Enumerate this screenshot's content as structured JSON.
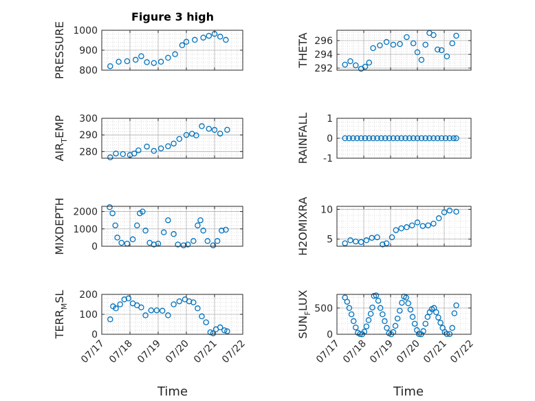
{
  "colors": {
    "marker": "#0072BD",
    "axis": "#262626",
    "grid": "#b0b0b0",
    "grid_minor": "#d4d4d4"
  },
  "figure": {
    "title": "Figure 3 high",
    "xlabel_left": "Time",
    "xlabel_right": "Time"
  },
  "chart_data": [
    {
      "type": "scatter",
      "name": "pressure",
      "ylabel": "PRESSURE",
      "ylim": [
        800,
        1000
      ],
      "yticks": [
        800,
        900,
        1000
      ],
      "ytick_labels": [
        "800",
        "900",
        "1000"
      ],
      "xlim": [
        0,
        5
      ],
      "xticks": [
        0,
        1,
        2,
        3,
        4,
        5
      ],
      "xtick_labels": [
        "07/17",
        "07/18",
        "07/19",
        "07/20",
        "07/21",
        "07/22"
      ],
      "show_xtick_labels": false,
      "grid": true,
      "minor_grid": true,
      "marker": "open-circle",
      "series": [
        {
          "x": [
            0.3,
            0.6,
            0.9,
            1.2,
            1.4,
            1.6,
            1.85,
            2.1,
            2.35,
            2.6,
            2.85,
            3.0,
            3.3,
            3.6,
            3.8,
            4.0,
            4.2,
            4.4
          ],
          "y": [
            820,
            842,
            845,
            852,
            870,
            840,
            836,
            842,
            862,
            880,
            925,
            942,
            952,
            963,
            972,
            982,
            968,
            952
          ]
        }
      ]
    },
    {
      "type": "scatter",
      "name": "theta",
      "ylabel": "THETA",
      "ylim": [
        291.7,
        297.5
      ],
      "yticks": [
        292,
        294,
        296
      ],
      "ytick_labels": [
        "292",
        "294",
        "296"
      ],
      "xlim": [
        0,
        5
      ],
      "xticks": [
        0,
        1,
        2,
        3,
        4,
        5
      ],
      "xtick_labels": [
        "07/17",
        "07/18",
        "07/19",
        "07/20",
        "07/21",
        "07/22"
      ],
      "show_xtick_labels": false,
      "grid": true,
      "minor_grid": true,
      "marker": "open-circle",
      "series": [
        {
          "x": [
            0.3,
            0.5,
            0.7,
            0.9,
            1.05,
            1.2,
            1.35,
            1.6,
            1.85,
            2.1,
            2.35,
            2.6,
            2.85,
            3.0,
            3.15,
            3.3,
            3.45,
            3.6,
            3.75,
            3.9,
            4.1,
            4.3,
            4.45
          ],
          "y": [
            292.5,
            293.0,
            292.4,
            291.9,
            292.2,
            292.8,
            294.9,
            295.3,
            295.8,
            295.4,
            295.5,
            296.5,
            295.6,
            294.3,
            293.2,
            295.4,
            297.1,
            296.8,
            294.7,
            294.6,
            293.7,
            295.6,
            296.7
          ]
        }
      ]
    },
    {
      "type": "scatter",
      "name": "air-temp",
      "ylabel": "AIR_TEMP",
      "ylabel_display": {
        "base": "AIR",
        "sub": "T",
        "rest": "EMP"
      },
      "ylim": [
        276,
        300
      ],
      "yticks": [
        280,
        290,
        300
      ],
      "ytick_labels": [
        "280",
        "290",
        "300"
      ],
      "xlim": [
        0,
        5
      ],
      "xticks": [
        0,
        1,
        2,
        3,
        4,
        5
      ],
      "xtick_labels": [
        "07/17",
        "07/18",
        "07/19",
        "07/20",
        "07/21",
        "07/22"
      ],
      "show_xtick_labels": false,
      "grid": true,
      "minor_grid": true,
      "marker": "open-circle",
      "series": [
        {
          "x": [
            0.3,
            0.5,
            0.75,
            1.0,
            1.15,
            1.3,
            1.6,
            1.85,
            2.1,
            2.35,
            2.55,
            2.75,
            3.0,
            3.2,
            3.35,
            3.55,
            3.8,
            4.0,
            4.2,
            4.45
          ],
          "y": [
            276.5,
            278.8,
            278.5,
            277.9,
            278.8,
            280.7,
            283.0,
            280.4,
            281.9,
            283.2,
            284.8,
            287.6,
            290.0,
            290.7,
            289.7,
            295.3,
            293.7,
            293.0,
            290.8,
            293.1
          ]
        }
      ]
    },
    {
      "type": "scatter",
      "name": "rainfall",
      "ylabel": "RAINFALL",
      "ylim": [
        -1,
        1
      ],
      "yticks": [
        -1,
        0,
        1
      ],
      "ytick_labels": [
        "-1",
        "0",
        "1"
      ],
      "xlim": [
        0,
        5
      ],
      "xticks": [
        0,
        1,
        2,
        3,
        4,
        5
      ],
      "xtick_labels": [
        "07/17",
        "07/18",
        "07/19",
        "07/20",
        "07/21",
        "07/22"
      ],
      "show_xtick_labels": false,
      "grid": true,
      "minor_grid": true,
      "marker": "open-circle",
      "series": [
        {
          "x": [
            0.3,
            0.45,
            0.6,
            0.75,
            0.9,
            1.05,
            1.2,
            1.35,
            1.5,
            1.65,
            1.8,
            1.95,
            2.1,
            2.25,
            2.4,
            2.55,
            2.7,
            2.85,
            3.0,
            3.15,
            3.3,
            3.45,
            3.6,
            3.75,
            3.9,
            4.05,
            4.2,
            4.35,
            4.45
          ],
          "y": [
            0,
            0,
            0,
            0,
            0,
            0,
            0,
            0,
            0,
            0,
            0,
            0,
            0,
            0,
            0,
            0,
            0,
            0,
            0,
            0,
            0,
            0,
            0,
            0,
            0,
            0,
            0,
            0,
            0
          ]
        }
      ]
    },
    {
      "type": "scatter",
      "name": "mixdepth",
      "ylabel": "MIXDEPTH",
      "ylim": [
        0,
        2300
      ],
      "yticks": [
        0,
        1000,
        2000
      ],
      "ytick_labels": [
        "0",
        "1000",
        "2000"
      ],
      "xlim": [
        0,
        5
      ],
      "xticks": [
        0,
        1,
        2,
        3,
        4,
        5
      ],
      "xtick_labels": [
        "07/17",
        "07/18",
        "07/19",
        "07/20",
        "07/21",
        "07/22"
      ],
      "show_xtick_labels": false,
      "grid": true,
      "minor_grid": true,
      "marker": "open-circle",
      "series": [
        {
          "x": [
            0.28,
            0.38,
            0.48,
            0.55,
            0.7,
            0.9,
            1.1,
            1.25,
            1.35,
            1.45,
            1.55,
            1.7,
            1.85,
            2.0,
            2.2,
            2.35,
            2.55,
            2.7,
            2.9,
            3.05,
            3.25,
            3.4,
            3.5,
            3.6,
            3.75,
            3.95,
            4.1,
            4.25,
            4.4
          ],
          "y": [
            2250,
            1900,
            1200,
            500,
            200,
            150,
            400,
            1200,
            1900,
            2000,
            900,
            200,
            100,
            150,
            800,
            1500,
            700,
            100,
            50,
            100,
            300,
            1200,
            1500,
            900,
            300,
            50,
            300,
            900,
            950
          ]
        }
      ]
    },
    {
      "type": "scatter",
      "name": "h2omixra",
      "ylabel": "H2OMIXRA",
      "ylim": [
        3.8,
        10.5
      ],
      "yticks": [
        5,
        10
      ],
      "ytick_labels": [
        "5",
        "10"
      ],
      "xlim": [
        0,
        5
      ],
      "xticks": [
        0,
        1,
        2,
        3,
        4,
        5
      ],
      "xtick_labels": [
        "07/17",
        "07/18",
        "07/19",
        "07/20",
        "07/21",
        "07/22"
      ],
      "show_xtick_labels": false,
      "grid": true,
      "minor_grid": true,
      "marker": "open-circle",
      "series": [
        {
          "x": [
            0.3,
            0.5,
            0.7,
            0.9,
            1.1,
            1.3,
            1.5,
            1.7,
            1.85,
            2.05,
            2.2,
            2.4,
            2.6,
            2.8,
            3.0,
            3.2,
            3.4,
            3.6,
            3.8,
            4.0,
            4.2,
            4.45
          ],
          "y": [
            4.3,
            4.8,
            4.6,
            4.5,
            4.8,
            5.2,
            5.3,
            4.1,
            4.3,
            5.3,
            6.5,
            6.8,
            7.0,
            7.3,
            7.8,
            7.2,
            7.3,
            7.6,
            8.5,
            9.5,
            9.8,
            9.6
          ]
        }
      ]
    },
    {
      "type": "scatter",
      "name": "terr-msl",
      "ylabel": "TERR_MSL",
      "ylabel_display": {
        "base": "TERR",
        "sub": "M",
        "rest": "SL"
      },
      "ylim": [
        0,
        200
      ],
      "yticks": [
        0,
        100,
        200
      ],
      "ytick_labels": [
        "0",
        "100",
        "200"
      ],
      "xlim": [
        0,
        5
      ],
      "xticks": [
        0,
        1,
        2,
        3,
        4,
        5
      ],
      "xtick_labels": [
        "07/17",
        "07/18",
        "07/19",
        "07/20",
        "07/21",
        "07/22"
      ],
      "show_xtick_labels": true,
      "grid": true,
      "minor_grid": true,
      "marker": "open-circle",
      "series": [
        {
          "x": [
            0.3,
            0.4,
            0.5,
            0.65,
            0.8,
            0.95,
            1.1,
            1.25,
            1.4,
            1.55,
            1.75,
            1.95,
            2.15,
            2.35,
            2.55,
            2.75,
            2.95,
            3.1,
            3.25,
            3.4,
            3.55,
            3.7,
            3.85,
            3.95,
            4.05,
            4.2,
            4.35,
            4.45
          ],
          "y": [
            75,
            140,
            130,
            150,
            175,
            180,
            155,
            145,
            135,
            95,
            120,
            120,
            118,
            95,
            150,
            165,
            175,
            165,
            160,
            130,
            90,
            60,
            10,
            5,
            25,
            35,
            20,
            15
          ]
        }
      ]
    },
    {
      "type": "scatter",
      "name": "sun-flux",
      "ylabel": "SUN_FLUX",
      "ylabel_display": {
        "base": "SUN",
        "sub": "F",
        "rest": "LUX"
      },
      "ylim": [
        0,
        760
      ],
      "yticks": [
        0,
        500
      ],
      "ytick_labels": [
        "0",
        "500"
      ],
      "xlim": [
        0,
        5
      ],
      "xticks": [
        0,
        1,
        2,
        3,
        4,
        5
      ],
      "xtick_labels": [
        "07/17",
        "07/18",
        "07/19",
        "07/20",
        "07/21",
        "07/22"
      ],
      "show_xtick_labels": true,
      "grid": true,
      "minor_grid": true,
      "marker": "open-circle",
      "series": [
        {
          "x": [
            0.3,
            0.38,
            0.46,
            0.54,
            0.62,
            0.7,
            0.78,
            0.86,
            0.94,
            1.02,
            1.1,
            1.18,
            1.26,
            1.32,
            1.38,
            1.46,
            1.54,
            1.62,
            1.7,
            1.78,
            1.86,
            1.94,
            2.02,
            2.1,
            2.18,
            2.26,
            2.34,
            2.42,
            2.5,
            2.58,
            2.66,
            2.74,
            2.82,
            2.9,
            2.98,
            3.06,
            3.14,
            3.22,
            3.3,
            3.38,
            3.46,
            3.54,
            3.62,
            3.7,
            3.78,
            3.86,
            3.94,
            4.02,
            4.1,
            4.2,
            4.3,
            4.38,
            4.45
          ],
          "y": [
            700,
            620,
            500,
            380,
            250,
            130,
            30,
            5,
            0,
            50,
            150,
            270,
            390,
            510,
            730,
            740,
            640,
            500,
            380,
            250,
            120,
            20,
            0,
            40,
            160,
            300,
            450,
            600,
            720,
            700,
            590,
            470,
            330,
            200,
            80,
            5,
            0,
            60,
            200,
            330,
            420,
            480,
            500,
            420,
            320,
            220,
            120,
            40,
            5,
            5,
            120,
            400,
            550
          ]
        }
      ]
    }
  ]
}
